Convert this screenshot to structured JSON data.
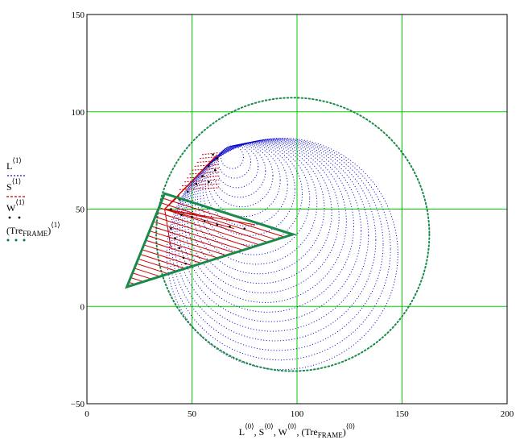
{
  "chart_data": {
    "type": "scatter",
    "xlim": [
      0,
      200
    ],
    "ylim": [
      -50,
      150
    ],
    "x_ticks": [
      0,
      50,
      100,
      150,
      200
    ],
    "y_ticks": [
      -50,
      0,
      50,
      100,
      150
    ],
    "x_tick_labels": [
      "0",
      "50",
      "100",
      "150",
      "200"
    ],
    "y_tick_labels": [
      "−50",
      "0",
      "50",
      "100",
      "150"
    ],
    "grid": true,
    "grid_color": "#00d000",
    "xlabel_parts": [
      {
        "base": "L",
        "sup": "⟨0⟩",
        "sep": ", "
      },
      {
        "base": "S",
        "sup": "⟨0⟩",
        "sep": ", "
      },
      {
        "base": "W",
        "sup": "⟨0⟩",
        "sep": ", "
      },
      {
        "base": "(Tre",
        "sub": "FRAME",
        "close": ")",
        "sup": "⟨0⟩",
        "sep": ""
      }
    ],
    "legend_placement": "left",
    "legend": [
      {
        "base": "L",
        "sup": "⟨1⟩",
        "color": "#0000cc",
        "marker": "dot"
      },
      {
        "base": "S",
        "sup": "⟨1⟩",
        "color": "#cc0000",
        "marker": "dash"
      },
      {
        "base": "W",
        "sup": "⟨1⟩",
        "color": "#000000",
        "marker": "plus"
      },
      {
        "base": "(Tre",
        "sub": "FRAME",
        "close": ")",
        "sup": "⟨1⟩",
        "color": "#007a3d",
        "marker": "diamond"
      }
    ],
    "series": {
      "frame": {
        "color": "#1a8a4a",
        "vertices": [
          [
            19,
            10
          ],
          [
            37,
            58
          ],
          [
            98,
            37
          ]
        ]
      },
      "outer_circle": {
        "color": "#1a8a4a",
        "center": [
          98,
          37
        ],
        "radius": 65
      },
      "L_arcs": {
        "color": "#0000cc",
        "apex": [
          68,
          82
        ],
        "count": 22
      },
      "S_hatch": {
        "color": "#cc0000",
        "count": 20
      },
      "W_points": {
        "color": "#000000"
      }
    }
  }
}
